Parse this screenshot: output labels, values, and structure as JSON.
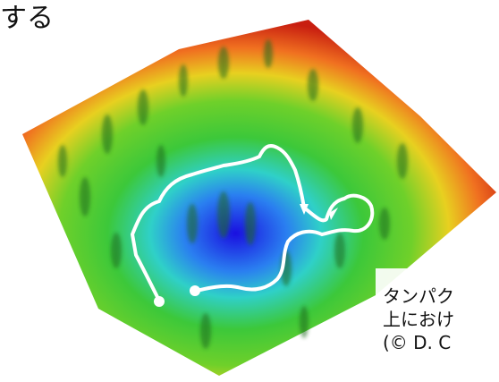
{
  "heading": {
    "text": "する"
  },
  "caption": {
    "lines": [
      "タンパク",
      "上におけ",
      "(© D. C"
    ]
  }
}
